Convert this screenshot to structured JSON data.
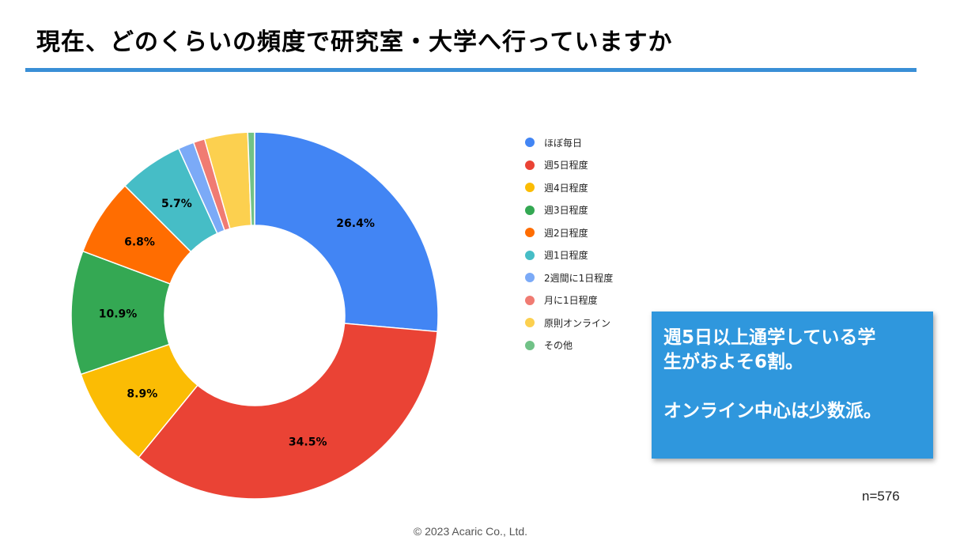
{
  "title": "現在、どのくらいの頻度で研究室・大学へ行っていますか",
  "chart_data": {
    "type": "pie",
    "variant": "donut",
    "title": "現在、どのくらいの頻度で研究室・大学へ行っていますか",
    "categories": [
      "ほぼ毎日",
      "週5日程度",
      "週4日程度",
      "週3日程度",
      "週2日程度",
      "週1日程度",
      "2週間に1日程度",
      "月に1日程度",
      "原則オンライン",
      "その他"
    ],
    "values": [
      26.4,
      34.5,
      8.9,
      10.9,
      6.8,
      5.7,
      1.4,
      1.0,
      3.8,
      0.6
    ],
    "colors": [
      "#4285f4",
      "#ea4335",
      "#fbbc04",
      "#34a853",
      "#ff6d01",
      "#46bdc6",
      "#7baaf7",
      "#f07b72",
      "#fcd04f",
      "#71c287"
    ],
    "data_labels": [
      "26.4%",
      "34.5%",
      "8.9%",
      "10.9%",
      "6.8%",
      "5.7%",
      "",
      "",
      "",
      ""
    ],
    "legend_position": "right",
    "sample_size": "n=576"
  },
  "callout": {
    "line1": "週5日以上通学している学",
    "line2": "生がおよそ6割。",
    "line3": "オンライン中心は少数派。"
  },
  "footer": {
    "sample": "n=576",
    "copyright": "© 2023 Acaric Co., Ltd."
  },
  "colors": {
    "title_rule": "#3a8fd6",
    "callout_bg": "#2f97dd"
  }
}
